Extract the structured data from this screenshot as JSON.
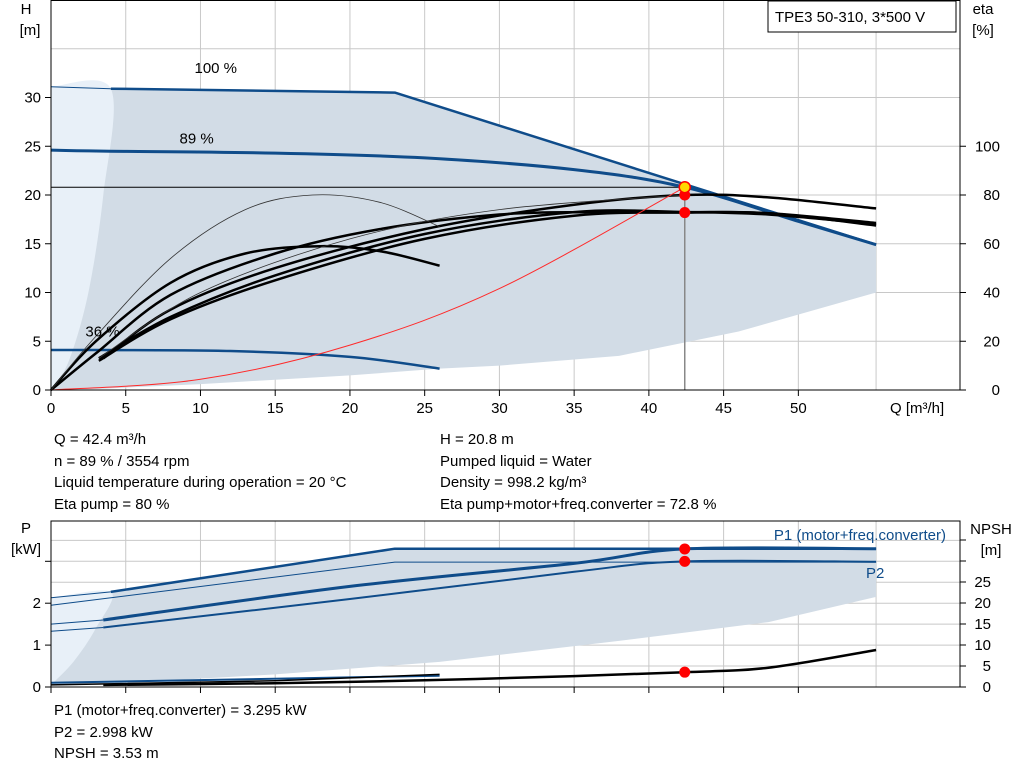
{
  "title_box": "TPE3 50-310, 3*500 V",
  "colors": {
    "envelope_fill": "#d2dce6",
    "envelope_fill_light": "#e8f0f8",
    "curve_blue": "#0f4c8a",
    "curve_black": "#000000",
    "system_curve": "#ff2a2a",
    "grid": "#c8c8c8",
    "operating_point": "#ff0000",
    "operating_point_head": "#ffd800"
  },
  "info_block": {
    "left": [
      "Q = 42.4 m³/h",
      "n = 89 % / 3554 rpm",
      "Liquid temperature during operation = 20 °C",
      "Eta pump = 80 %"
    ],
    "right": [
      "H = 20.8 m",
      "Pumped liquid = Water",
      "Density = 998.2 kg/m³",
      "Eta pump+motor+freq.converter = 72.8 %"
    ]
  },
  "bottom_info": [
    "P1 (motor+freq.converter) = 3.295 kW",
    "P2 = 2.998 kW",
    "NPSH = 3.53 m"
  ],
  "chart_data": [
    {
      "type": "line",
      "title": "TPE3 50-310, 3*500 V",
      "xlabel": "Q [m³/h]",
      "ylabel": "H\n[m]",
      "ylabel_right": "eta\n[%]",
      "xlim": [
        0,
        60
      ],
      "ylim": [
        0,
        40
      ],
      "ylim_right": [
        0,
        160
      ],
      "x_ticks": [
        0,
        5,
        10,
        15,
        20,
        25,
        30,
        35,
        40,
        45,
        50
      ],
      "y_ticks": [
        0,
        5,
        10,
        15,
        20,
        25,
        30
      ],
      "y_right_ticks": [
        0,
        20,
        40,
        60,
        80,
        100
      ],
      "speed_labels": [
        {
          "text": "100 %",
          "x": 9.6,
          "y": 32.5
        },
        {
          "text": "89 %",
          "x": 8.6,
          "y": 25.3
        },
        {
          "text": "36 %",
          "x": 2.3,
          "y": 5.5
        }
      ],
      "envelope": {
        "upper": [
          [
            0,
            31.1
          ],
          [
            4,
            30.9
          ],
          [
            23,
            30.5
          ],
          [
            55.2,
            14.9
          ]
        ],
        "lower_right": [
          [
            55.2,
            10
          ],
          [
            46,
            6
          ],
          [
            38,
            3.5
          ],
          [
            30,
            2.5
          ],
          [
            26,
            2.2
          ],
          [
            20,
            1.5
          ],
          [
            10,
            0.6
          ],
          [
            3,
            0.1
          ],
          [
            0,
            0
          ]
        ],
        "light_wedge": [
          [
            0,
            31.1
          ],
          [
            4,
            30.9
          ],
          [
            3.5,
            20
          ],
          [
            2.5,
            10
          ],
          [
            1.2,
            3
          ],
          [
            0,
            0
          ]
        ]
      },
      "series": [
        {
          "name": "100 %",
          "role": "head",
          "color": "#0f4c8a",
          "points": [
            [
              4,
              30.9
            ],
            [
              23,
              30.5
            ],
            [
              55.2,
              14.9
            ]
          ]
        },
        {
          "name": "89 %",
          "role": "head",
          "color": "#0f4c8a",
          "points": [
            [
              0,
              24.6
            ],
            [
              3.5,
              24.5
            ],
            [
              15,
              24.3
            ],
            [
              25,
              23.8
            ],
            [
              35,
              22.6
            ],
            [
              42.4,
              20.8
            ],
            [
              50,
              17.3
            ],
            [
              55.2,
              14.9
            ]
          ]
        },
        {
          "name": "36 %",
          "role": "head",
          "color": "#0f4c8a",
          "points": [
            [
              0,
              4.1
            ],
            [
              3.5,
              4.1
            ],
            [
              12,
              4.0
            ],
            [
              20,
              3.4
            ],
            [
              26,
              2.2
            ]
          ]
        },
        {
          "role": "eta",
          "scale": "right",
          "color": "#000000",
          "points": [
            [
              0,
              0
            ],
            [
              3,
              15
            ],
            [
              8,
              39
            ],
            [
              15,
              56
            ],
            [
              22,
              66
            ],
            [
              30,
              72
            ],
            [
              36,
              73
            ],
            [
              42.4,
              73
            ],
            [
              48,
              72.5
            ],
            [
              55.2,
              67.5
            ]
          ]
        },
        {
          "role": "eta",
          "scale": "right",
          "color": "#000000",
          "points": [
            [
              3.5,
              13
            ],
            [
              8,
              33
            ],
            [
              15,
              50
            ],
            [
              25,
              66
            ],
            [
              35,
              76
            ],
            [
              42.4,
              80
            ],
            [
              48,
              79
            ],
            [
              55.2,
              74.5
            ]
          ]
        },
        {
          "role": "eta",
          "scale": "right",
          "color": "#000000",
          "points": [
            [
              3.2,
              13
            ],
            [
              8,
              30
            ],
            [
              15,
              47
            ],
            [
              25,
              64
            ],
            [
              35,
              73
            ],
            [
              42.4,
              73
            ],
            [
              48,
              72
            ],
            [
              55.2,
              68
            ]
          ]
        },
        {
          "role": "eta",
          "scale": "right",
          "color": "#000000",
          "points": [
            [
              3.2,
              12
            ],
            [
              8,
              29
            ],
            [
              15,
              45
            ],
            [
              25,
              62
            ],
            [
              35,
              71.5
            ],
            [
              42.4,
              72.8
            ],
            [
              48,
              72.5
            ],
            [
              55.2,
              68.5
            ]
          ]
        },
        {
          "role": "eta",
          "scale": "right",
          "color": "#000000",
          "points": [
            [
              0,
              0
            ],
            [
              3,
              20
            ],
            [
              8,
              44
            ],
            [
              13,
              56
            ],
            [
              18,
              59
            ],
            [
              22,
              57
            ],
            [
              26,
              51
            ]
          ]
        },
        {
          "role": "eta-thin",
          "scale": "right",
          "color": "#333333",
          "points": [
            [
              0,
              0
            ],
            [
              3,
              22
            ],
            [
              8,
              54
            ],
            [
              13,
              74
            ],
            [
              17.5,
              80
            ],
            [
              22,
              77
            ],
            [
              26,
              67
            ]
          ]
        },
        {
          "role": "eta-thin",
          "scale": "right",
          "color": "#333333",
          "points": [
            [
              3.2,
              13
            ],
            [
              10,
              40
            ],
            [
              20,
              62
            ],
            [
              30,
              74
            ],
            [
              42.4,
              80
            ]
          ]
        },
        {
          "role": "system",
          "color": "#ff2a2a",
          "points": [
            [
              0,
              0
            ],
            [
              10,
              1.1
            ],
            [
              20,
              4.6
            ],
            [
              30,
              10.4
            ],
            [
              42.4,
              20.8
            ]
          ]
        }
      ],
      "hline_y": 20.8,
      "operating_point": {
        "q": 42.4,
        "h": 20.8,
        "eta_points": [
          80,
          72.8
        ]
      }
    },
    {
      "type": "line",
      "ylabel": "P\n[kW]",
      "ylabel_right": "NPSH\n[m]",
      "xlim": [
        0,
        60
      ],
      "ylim": [
        0,
        3.9
      ],
      "ylim_right": [
        0,
        40
      ],
      "y_ticks": [
        0,
        1,
        2
      ],
      "y_right_ticks": [
        0,
        5,
        10,
        15,
        20,
        25
      ],
      "legend": [
        {
          "text": "P1 (motor+freq.converter)",
          "placement": "top-right"
        },
        {
          "text": "P2",
          "placement": "right"
        }
      ],
      "envelope": {
        "upper": [
          [
            0,
            2.13
          ],
          [
            4,
            2.27
          ],
          [
            23,
            3.3
          ],
          [
            55.2,
            3.3
          ]
        ],
        "lower_right": [
          [
            55.2,
            2.15
          ],
          [
            48,
            1.55
          ],
          [
            38,
            1.1
          ],
          [
            26,
            0.6
          ],
          [
            15,
            0.3
          ],
          [
            5,
            0.1
          ],
          [
            0,
            0.05
          ]
        ],
        "light_wedge": [
          [
            0,
            2.13
          ],
          [
            4,
            2.27
          ],
          [
            3,
            1.4
          ],
          [
            1.5,
            0.6
          ],
          [
            0,
            0.05
          ]
        ]
      },
      "series": [
        {
          "name": "P1 (motor+freq.converter)",
          "role": "p1-100",
          "color": "#0f4c8a",
          "points": [
            [
              4,
              2.27
            ],
            [
              23,
              3.3
            ],
            [
              55.2,
              3.3
            ]
          ]
        },
        {
          "name": "P1 (motor+freq.converter)",
          "role": "p1-89",
          "color": "#0f4c8a",
          "points": [
            [
              3.5,
              1.6
            ],
            [
              20,
              2.4
            ],
            [
              35,
              2.95
            ],
            [
              42.4,
              3.295
            ],
            [
              55.2,
              3.3
            ]
          ]
        },
        {
          "name": "P2",
          "role": "p2-89",
          "color": "#0f4c8a",
          "points": [
            [
              3.5,
              1.42
            ],
            [
              20,
              2.1
            ],
            [
              35,
              2.75
            ],
            [
              42.4,
              2.998
            ],
            [
              55.2,
              2.99
            ]
          ]
        },
        {
          "name": "P2",
          "role": "p2-100",
          "color": "#0f4c8a",
          "points": [
            [
              0,
              1.95
            ],
            [
              23,
              2.98
            ],
            [
              55.2,
              2.98
            ]
          ]
        },
        {
          "role": "p-36",
          "color": "#0f4c8a",
          "points": [
            [
              0,
              0.1
            ],
            [
              26,
              0.27
            ]
          ]
        },
        {
          "role": "npsh",
          "scale": "right",
          "color": "#000000",
          "points": [
            [
              3.5,
              0.5
            ],
            [
              15,
              0.9
            ],
            [
              25,
              1.6
            ],
            [
              35,
              2.6
            ],
            [
              42.4,
              3.53
            ],
            [
              48,
              4.6
            ],
            [
              55.2,
              8.8
            ]
          ]
        }
      ],
      "operating_points": [
        {
          "q": 42.4,
          "p": 3.295
        },
        {
          "q": 42.4,
          "p": 2.998
        },
        {
          "q": 42.4,
          "npsh": 3.53
        }
      ]
    }
  ]
}
